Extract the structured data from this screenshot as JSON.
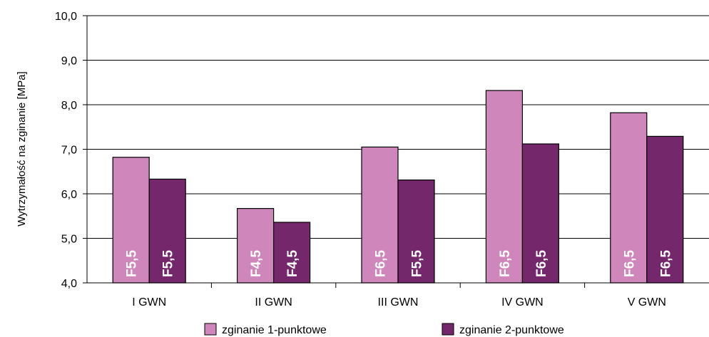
{
  "chart_data": {
    "type": "bar",
    "title": "",
    "ylabel": "Wytrzymałość na zginanie [MPa]",
    "xlabel": "",
    "ylim": [
      4.0,
      10.0
    ],
    "yticks": [
      "4,0",
      "5,0",
      "6,0",
      "7,0",
      "8,0",
      "9,0",
      "10,0"
    ],
    "grid": true,
    "legend_position": "bottom",
    "categories": [
      "I GWN",
      "II GWN",
      "III GWN",
      "IV GWN",
      "V GWN"
    ],
    "series": [
      {
        "name": "zginanie 1-punktowe",
        "color": "#cf86bb",
        "values": [
          6.82,
          5.67,
          7.05,
          8.32,
          7.82
        ],
        "labels": [
          "F5,5",
          "F4,5",
          "F6,5",
          "F6,5",
          "F6,5"
        ]
      },
      {
        "name": "zginanie 2-punktowe",
        "color": "#74276a",
        "values": [
          6.33,
          5.36,
          6.31,
          7.12,
          7.29
        ],
        "labels": [
          "F5,5",
          "F4,5",
          "F5,5",
          "F6,5",
          "F6,5"
        ]
      }
    ]
  }
}
